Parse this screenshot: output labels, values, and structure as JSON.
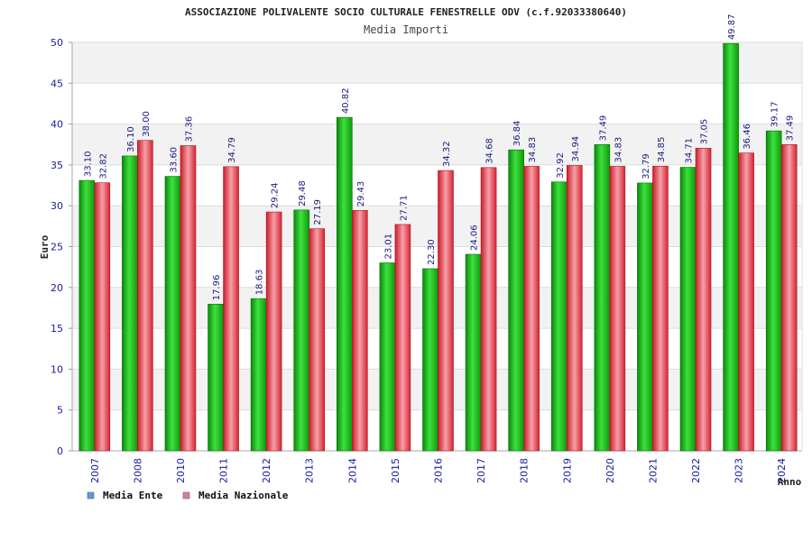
{
  "chart_data": {
    "type": "bar",
    "title": "ASSOCIAZIONE POLIVALENTE SOCIO CULTURALE FENESTRELLE ODV (c.f.92033380640)",
    "subtitle": "Media Importi",
    "xlabel": "Anno",
    "ylabel": "Euro",
    "ylim": [
      0,
      50
    ],
    "yticks": [
      0,
      5,
      10,
      15,
      20,
      25,
      30,
      35,
      40,
      45,
      50
    ],
    "grid": true,
    "legend_position": "bottom-left",
    "categories": [
      "2007",
      "2008",
      "2010",
      "2011",
      "2012",
      "2013",
      "2014",
      "2015",
      "2016",
      "2017",
      "2018",
      "2019",
      "2020",
      "2021",
      "2022",
      "2023",
      "2024"
    ],
    "series": [
      {
        "name": "Media Ente",
        "color": "#1db51d",
        "legend_color": "#5b9be6",
        "values": [
          33.1,
          36.1,
          33.6,
          17.96,
          18.63,
          29.48,
          40.82,
          23.01,
          22.3,
          24.06,
          36.84,
          32.92,
          37.49,
          32.79,
          34.71,
          49.87,
          39.17
        ],
        "labels": [
          "33.10",
          "36.10",
          "33.60",
          "17.96",
          "18.63",
          "29.48",
          "40.82",
          "23.01",
          "22.30",
          "24.06",
          "36.84",
          "32.92",
          "37.49",
          "32.79",
          "34.71",
          "49.87",
          "39.17"
        ]
      },
      {
        "name": "Media Nazionale",
        "color": "#e8333f",
        "legend_color": "#e07aa0",
        "values": [
          32.82,
          38.0,
          37.36,
          34.79,
          29.24,
          27.19,
          29.43,
          27.71,
          34.32,
          34.68,
          34.83,
          34.94,
          34.83,
          34.85,
          37.05,
          36.46,
          37.49
        ],
        "labels": [
          "32.82",
          "38.00",
          "37.36",
          "34.79",
          "29.24",
          "27.19",
          "29.43",
          "27.71",
          "34.32",
          "34.68",
          "34.83",
          "34.94",
          "34.83",
          "34.85",
          "37.05",
          "36.46",
          "37.49"
        ]
      }
    ]
  }
}
